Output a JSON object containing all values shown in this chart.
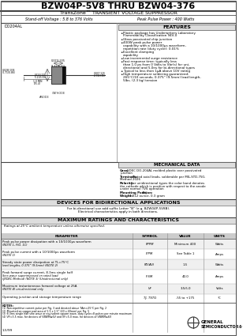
{
  "title": "BZW04P-5V8 THRU BZW04-376",
  "subtitle": "TransZone™ TRANSIENT VOLTAGE SUPPRESSOR",
  "subtitle2_left": "Stand-off Voltage : 5.8 to 376 Volts",
  "subtitle2_right": "Peak Pulse Power : 400 Watts",
  "features_title": "FEATURES",
  "features": [
    "Plastic package has Underwriters Laboratory\nFlammability Classification 94V-0",
    "Glass passivated chip junction",
    "400W peak pulse power\ncapability with a 10/1000μs waveform,\nrepetition rate (duty cycle): 0.01%",
    "Excellent clamping\ncapability",
    "Low incremental surge resistance",
    "Fast response time: typically less\nthan 1.0 ps from 0 Volts to Vbr(s) for uni-\ndirectional and 5.0ns for bi-directional types",
    "Typical to less than 1μA above 10V rating",
    "High temperature soldering guaranteed:\n265°C/10 seconds, 0.375” (9.5mm) lead length,\n5lbs. (2.3 kg) tension"
  ],
  "mech_title": "MECHANICAL DATA",
  "mech_entries": [
    {
      "key": "Case:",
      "val": "JEDEC DO-204AL molded plastic over passivated\njunction"
    },
    {
      "key": "Terminals:",
      "val": "Plated axial leads, solderable per MIL-STD-750,\nMethod 2026"
    },
    {
      "key": "Polarity:",
      "val": "For unidirectional types the color band denotes\nthe cathode which is positive with respect to the anode\nunder normal TVS operation"
    },
    {
      "key": "Mounting Position:",
      "val": "Any"
    },
    {
      "key": "Weight:",
      "val": "0.012 ounce, 0.3 gram"
    }
  ],
  "bidir_title": "DEVICES FOR BIDIRECTIONAL APPLICATIONS",
  "bidir_line1": "For bi-directional use add suffix Letter \"B\" (e.g. BZW04P-5V8B).",
  "bidir_line2": "Electrical characteristics apply in both directions.",
  "ratings_title": "MAXIMUM RATINGS AND CHARACTERISTICS",
  "ratings_note": "Ratings at 25°C ambient temperature unless otherwise specified.",
  "col_header": [
    "PARAMETER",
    "SYMBOL",
    "VALUE",
    "UNITS"
  ],
  "table_rows": [
    {
      "param": "Peak pulse power dissipation with a 10/1000μs waveform",
      "param2": "(NOTE 1, FIG. 1C)",
      "symbol": "PPPM",
      "value": "Minimum 400",
      "units": "Watts"
    },
    {
      "param": "Peak pulse current with a 10/1000μs waveform",
      "param2": "(NOTE 1)",
      "symbol": "IPPM",
      "value": "See Table 1",
      "units": "Amps"
    },
    {
      "param": "Steady state power dissipation at TL=75°C",
      "param2": "lead lengths, 0.375” (9.5mm) (NOTE 2)",
      "symbol": "PD(AV)",
      "value": "1.5",
      "units": "Watts"
    },
    {
      "param": "Peak forward surge current, 8.3ms single half",
      "param2": "Sine-wave superimposed on rated load",
      "param3": "(JEDEC Method) (NOTE 3) (Unidirectional only)",
      "symbol": "IFSM",
      "value": "40.0",
      "units": "Amps"
    },
    {
      "param": "Maximum instantaneous forward voltage at 25A",
      "param2": "(NOTE 4) uni-directional only",
      "symbol": "VF",
      "value": "3.5/5.0",
      "units": "Volts"
    },
    {
      "param": "Operating junction and storage temperature range",
      "param2": "",
      "symbol": "TJ, TSTG",
      "value": "-55 to +175",
      "units": "°C"
    }
  ],
  "notes_title": "NOTES:",
  "notes": [
    "(1) Non-repetitive current pulse per Fig. 3 and derated above TAm=25°C per Fig. 2",
    "(2) Mounted on copper pad area of 1.5 x 1.5” (40 x 40mm) per Fig. 5",
    "(3) 8.3ms single half sine wave or equivalent square wave, duty cycle=8 pulses per minute maximum",
    "(4) VF=3.5 max. for devices of VBWM≤6V and VF=5.0 max. for devices of VBWM≤6V"
  ],
  "note_date": "1-5/99",
  "bg_color": "#ffffff",
  "text_color": "#000000"
}
